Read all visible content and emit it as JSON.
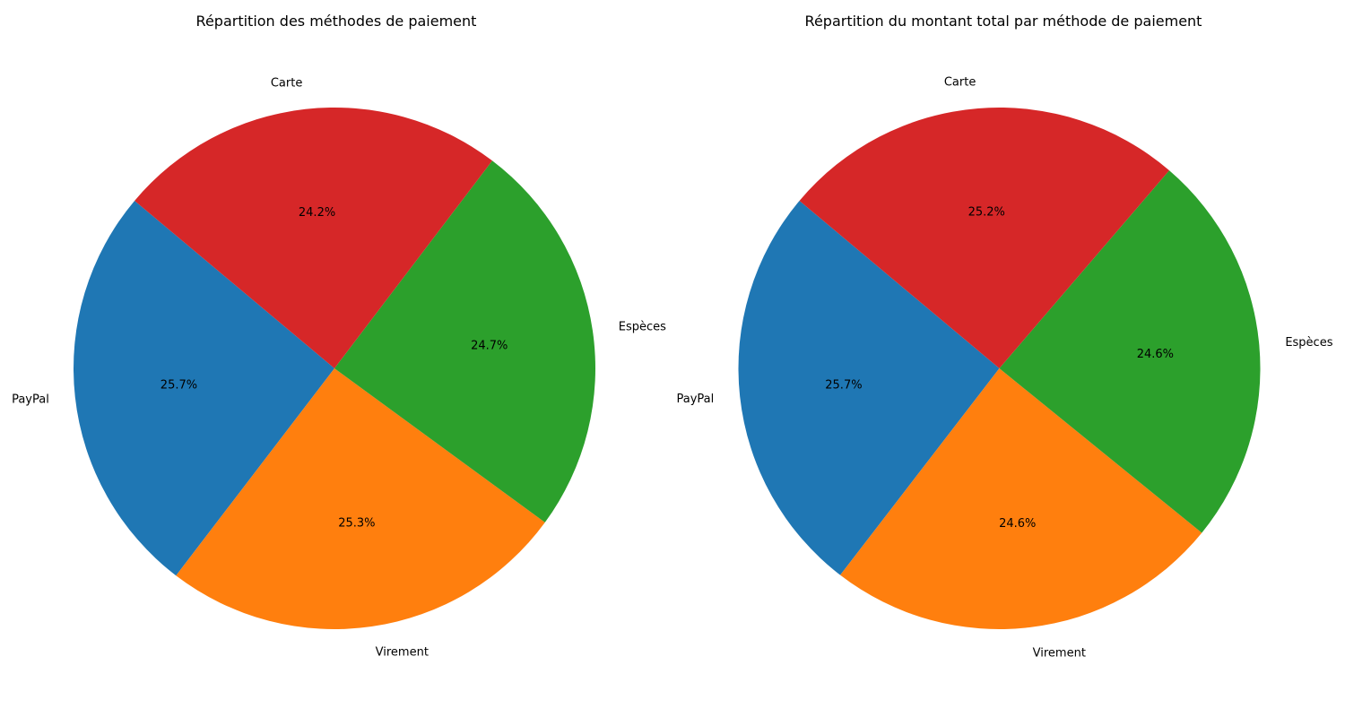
{
  "chart_data": [
    {
      "type": "pie",
      "title": "Répartition des méthodes de paiement",
      "categories": [
        "PayPal",
        "Virement",
        "Espèces",
        "Carte"
      ],
      "values": [
        25.7,
        25.3,
        24.7,
        24.2
      ],
      "value_labels": [
        "25.7%",
        "25.3%",
        "24.7%",
        "24.2%"
      ],
      "colors": [
        "#1f77b4",
        "#ff7f0e",
        "#2ca02c",
        "#d62728"
      ]
    },
    {
      "type": "pie",
      "title": "Répartition du montant total par méthode de paiement",
      "categories": [
        "PayPal",
        "Virement",
        "Espèces",
        "Carte"
      ],
      "values": [
        25.7,
        24.6,
        24.6,
        25.2
      ],
      "value_labels": [
        "25.7%",
        "24.6%",
        "24.6%",
        "25.2%"
      ],
      "colors": [
        "#1f77b4",
        "#ff7f0e",
        "#2ca02c",
        "#d62728"
      ]
    }
  ]
}
